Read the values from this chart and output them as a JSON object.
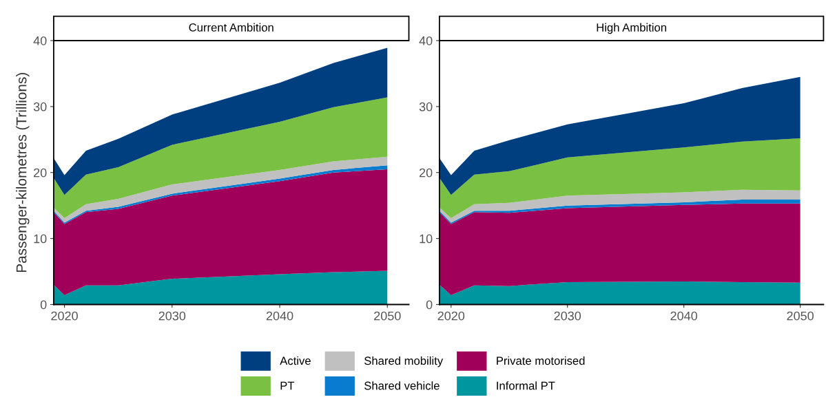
{
  "chart_data": [
    {
      "type": "area",
      "stacked": true,
      "title": "Current Ambition",
      "legend": "bottom",
      "ylabel": "Passenger-kilometres (Trillions)",
      "x": [
        2019,
        2020,
        2022,
        2025,
        2030,
        2040,
        2045,
        2050
      ],
      "xlim": [
        2019,
        2052
      ],
      "xticks": [
        2020,
        2030,
        2040,
        2050
      ],
      "ylim": [
        0,
        40
      ],
      "yticks": [
        0,
        10,
        20,
        30,
        40
      ],
      "grid": false,
      "series": [
        {
          "name": "Informal PT",
          "color": "#0096a0",
          "values": [
            3.0,
            1.4,
            2.9,
            2.9,
            3.9,
            4.6,
            4.9,
            5.1
          ]
        },
        {
          "name": "Private motorised",
          "color": "#a0005a",
          "values": [
            11.0,
            10.8,
            11.1,
            11.6,
            12.6,
            14.1,
            15.1,
            15.4
          ]
        },
        {
          "name": "Shared vehicle",
          "color": "#0a7ccf",
          "values": [
            0.2,
            0.2,
            0.2,
            0.3,
            0.3,
            0.4,
            0.4,
            0.6
          ]
        },
        {
          "name": "Shared mobility",
          "color": "#c0c0c0",
          "values": [
            0.5,
            0.7,
            1.0,
            1.2,
            1.4,
            1.3,
            1.3,
            1.3
          ]
        },
        {
          "name": "PT",
          "color": "#7ac143",
          "values": [
            4.5,
            3.5,
            4.5,
            4.8,
            6.0,
            7.3,
            8.2,
            9.0
          ]
        },
        {
          "name": "Active",
          "color": "#003f7f",
          "values": [
            3.0,
            3.0,
            3.6,
            4.3,
            4.6,
            5.9,
            6.7,
            7.5
          ]
        }
      ]
    },
    {
      "type": "area",
      "stacked": true,
      "title": "High Ambition",
      "legend": "bottom",
      "x": [
        2019,
        2020,
        2022,
        2025,
        2030,
        2040,
        2045,
        2050
      ],
      "xlim": [
        2019,
        2052
      ],
      "xticks": [
        2020,
        2030,
        2040,
        2050
      ],
      "ylim": [
        0,
        40
      ],
      "yticks": [
        0,
        10,
        20,
        30,
        40
      ],
      "grid": false,
      "series": [
        {
          "name": "Informal PT",
          "color": "#0096a0",
          "values": [
            3.0,
            1.4,
            2.9,
            2.8,
            3.4,
            3.5,
            3.4,
            3.3
          ]
        },
        {
          "name": "Private motorised",
          "color": "#a0005a",
          "values": [
            11.0,
            10.8,
            11.1,
            11.1,
            11.2,
            11.6,
            11.9,
            12.0
          ]
        },
        {
          "name": "Shared vehicle",
          "color": "#0a7ccf",
          "values": [
            0.2,
            0.2,
            0.2,
            0.3,
            0.4,
            0.4,
            0.6,
            0.6
          ]
        },
        {
          "name": "Shared mobility",
          "color": "#c0c0c0",
          "values": [
            0.5,
            0.7,
            1.0,
            1.2,
            1.5,
            1.5,
            1.5,
            1.4
          ]
        },
        {
          "name": "PT",
          "color": "#7ac143",
          "values": [
            4.5,
            3.5,
            4.5,
            4.8,
            5.8,
            6.8,
            7.3,
            7.9
          ]
        },
        {
          "name": "Active",
          "color": "#003f7f",
          "values": [
            3.0,
            3.0,
            3.6,
            4.7,
            5.0,
            6.7,
            8.1,
            9.3
          ]
        }
      ]
    }
  ]
}
